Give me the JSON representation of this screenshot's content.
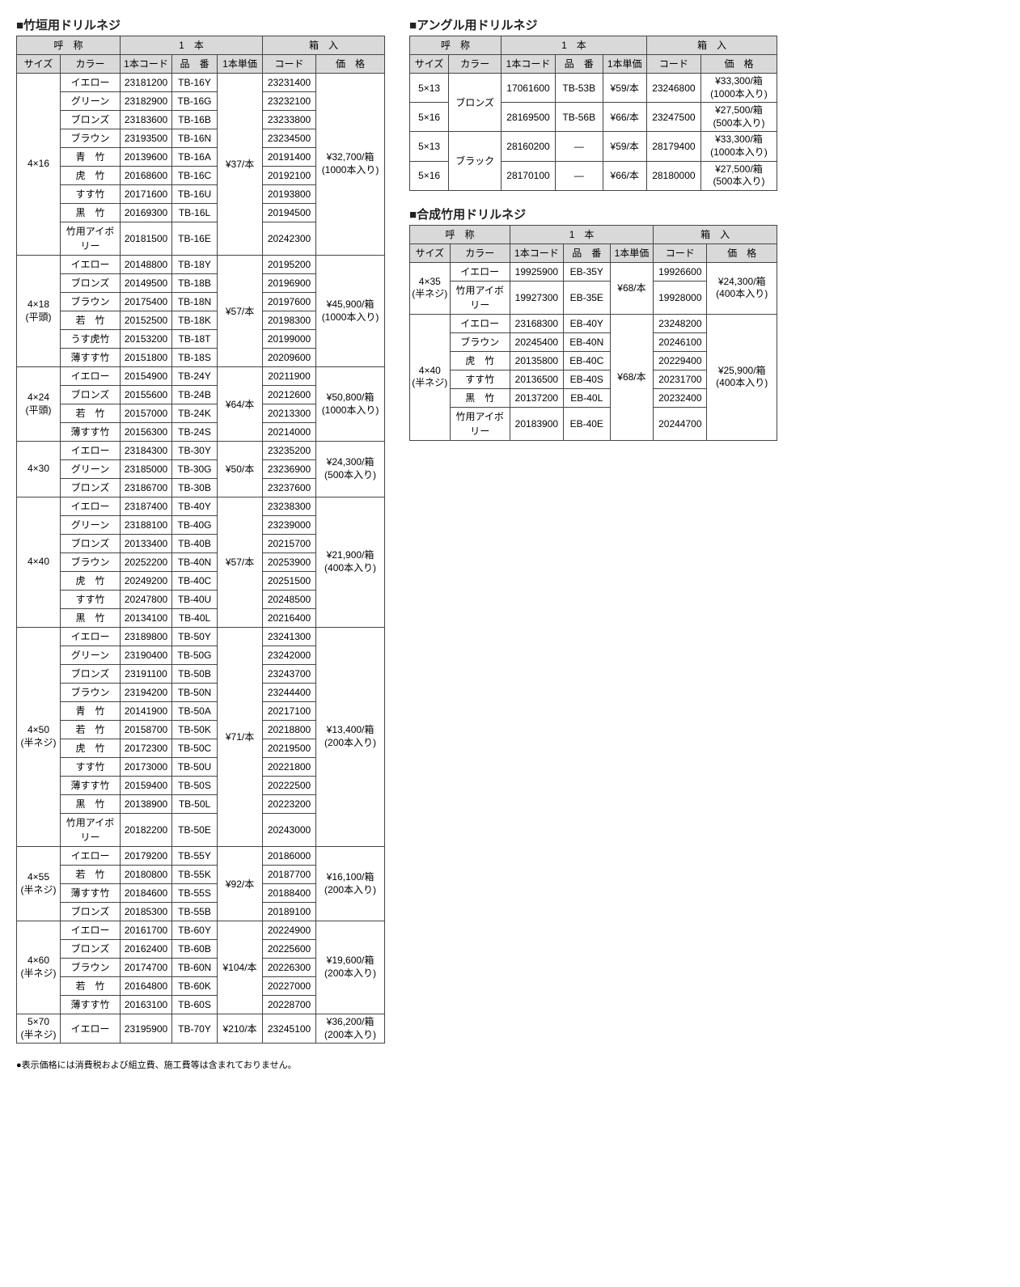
{
  "headers": {
    "name": "呼　称",
    "size": "サイズ",
    "color": "カラー",
    "single": "1　本",
    "code1": "1本コード",
    "part": "品　番",
    "unitPrice": "1本単価",
    "box": "箱　入",
    "boxCode": "コード",
    "boxPrice": "価　格"
  },
  "titles": {
    "t1": "■竹垣用ドリルネジ",
    "t2": "■アングル用ドリルネジ",
    "t3": "■合成竹用ドリルネジ"
  },
  "table1": {
    "groups": [
      {
        "size": "4×16",
        "sizeNote": "",
        "unitPrice": "¥37/本",
        "boxPrice": "¥32,700/箱",
        "boxPack": "(1000本入り)",
        "rows": [
          {
            "color": "イエロー",
            "code": "23181200",
            "part": "TB-16Y",
            "boxCode": "23231400"
          },
          {
            "color": "グリーン",
            "code": "23182900",
            "part": "TB-16G",
            "boxCode": "23232100"
          },
          {
            "color": "ブロンズ",
            "code": "23183600",
            "part": "TB-16B",
            "boxCode": "23233800"
          },
          {
            "color": "ブラウン",
            "code": "23193500",
            "part": "TB-16N",
            "boxCode": "23234500"
          },
          {
            "color": "青　竹",
            "code": "20139600",
            "part": "TB-16A",
            "boxCode": "20191400"
          },
          {
            "color": "虎　竹",
            "code": "20168600",
            "part": "TB-16C",
            "boxCode": "20192100"
          },
          {
            "color": "すす竹",
            "code": "20171600",
            "part": "TB-16U",
            "boxCode": "20193800"
          },
          {
            "color": "黒　竹",
            "code": "20169300",
            "part": "TB-16L",
            "boxCode": "20194500"
          },
          {
            "color": "竹用アイボリー",
            "code": "20181500",
            "part": "TB-16E",
            "boxCode": "20242300"
          }
        ]
      },
      {
        "size": "4×18",
        "sizeNote": "(平頭)",
        "unitPrice": "¥57/本",
        "boxPrice": "¥45,900/箱",
        "boxPack": "(1000本入り)",
        "rows": [
          {
            "color": "イエロー",
            "code": "20148800",
            "part": "TB-18Y",
            "boxCode": "20195200"
          },
          {
            "color": "ブロンズ",
            "code": "20149500",
            "part": "TB-18B",
            "boxCode": "20196900"
          },
          {
            "color": "ブラウン",
            "code": "20175400",
            "part": "TB-18N",
            "boxCode": "20197600"
          },
          {
            "color": "若　竹",
            "code": "20152500",
            "part": "TB-18K",
            "boxCode": "20198300"
          },
          {
            "color": "うす虎竹",
            "code": "20153200",
            "part": "TB-18T",
            "boxCode": "20199000"
          },
          {
            "color": "薄すす竹",
            "code": "20151800",
            "part": "TB-18S",
            "boxCode": "20209600"
          }
        ]
      },
      {
        "size": "4×24",
        "sizeNote": "(平頭)",
        "unitPrice": "¥64/本",
        "boxPrice": "¥50,800/箱",
        "boxPack": "(1000本入り)",
        "rows": [
          {
            "color": "イエロー",
            "code": "20154900",
            "part": "TB-24Y",
            "boxCode": "20211900"
          },
          {
            "color": "ブロンズ",
            "code": "20155600",
            "part": "TB-24B",
            "boxCode": "20212600"
          },
          {
            "color": "若　竹",
            "code": "20157000",
            "part": "TB-24K",
            "boxCode": "20213300"
          },
          {
            "color": "薄すす竹",
            "code": "20156300",
            "part": "TB-24S",
            "boxCode": "20214000"
          }
        ]
      },
      {
        "size": "4×30",
        "sizeNote": "",
        "unitPrice": "¥50/本",
        "boxPrice": "¥24,300/箱",
        "boxPack": "(500本入り)",
        "rows": [
          {
            "color": "イエロー",
            "code": "23184300",
            "part": "TB-30Y",
            "boxCode": "23235200"
          },
          {
            "color": "グリーン",
            "code": "23185000",
            "part": "TB-30G",
            "boxCode": "23236900"
          },
          {
            "color": "ブロンズ",
            "code": "23186700",
            "part": "TB-30B",
            "boxCode": "23237600"
          }
        ]
      },
      {
        "size": "4×40",
        "sizeNote": "",
        "unitPrice": "¥57/本",
        "boxPrice": "¥21,900/箱",
        "boxPack": "(400本入り)",
        "rows": [
          {
            "color": "イエロー",
            "code": "23187400",
            "part": "TB-40Y",
            "boxCode": "23238300"
          },
          {
            "color": "グリーン",
            "code": "23188100",
            "part": "TB-40G",
            "boxCode": "23239000"
          },
          {
            "color": "ブロンズ",
            "code": "20133400",
            "part": "TB-40B",
            "boxCode": "20215700"
          },
          {
            "color": "ブラウン",
            "code": "20252200",
            "part": "TB-40N",
            "boxCode": "20253900"
          },
          {
            "color": "虎　竹",
            "code": "20249200",
            "part": "TB-40C",
            "boxCode": "20251500"
          },
          {
            "color": "すす竹",
            "code": "20247800",
            "part": "TB-40U",
            "boxCode": "20248500"
          },
          {
            "color": "黒　竹",
            "code": "20134100",
            "part": "TB-40L",
            "boxCode": "20216400"
          }
        ]
      },
      {
        "size": "4×50",
        "sizeNote": "(半ネジ)",
        "unitPrice": "¥71/本",
        "boxPrice": "¥13,400/箱",
        "boxPack": "(200本入り)",
        "rows": [
          {
            "color": "イエロー",
            "code": "23189800",
            "part": "TB-50Y",
            "boxCode": "23241300"
          },
          {
            "color": "グリーン",
            "code": "23190400",
            "part": "TB-50G",
            "boxCode": "23242000"
          },
          {
            "color": "ブロンズ",
            "code": "23191100",
            "part": "TB-50B",
            "boxCode": "23243700"
          },
          {
            "color": "ブラウン",
            "code": "23194200",
            "part": "TB-50N",
            "boxCode": "23244400"
          },
          {
            "color": "青　竹",
            "code": "20141900",
            "part": "TB-50A",
            "boxCode": "20217100"
          },
          {
            "color": "若　竹",
            "code": "20158700",
            "part": "TB-50K",
            "boxCode": "20218800"
          },
          {
            "color": "虎　竹",
            "code": "20172300",
            "part": "TB-50C",
            "boxCode": "20219500"
          },
          {
            "color": "すす竹",
            "code": "20173000",
            "part": "TB-50U",
            "boxCode": "20221800"
          },
          {
            "color": "薄すす竹",
            "code": "20159400",
            "part": "TB-50S",
            "boxCode": "20222500"
          },
          {
            "color": "黒　竹",
            "code": "20138900",
            "part": "TB-50L",
            "boxCode": "20223200"
          },
          {
            "color": "竹用アイボリー",
            "code": "20182200",
            "part": "TB-50E",
            "boxCode": "20243000"
          }
        ]
      },
      {
        "size": "4×55",
        "sizeNote": "(半ネジ)",
        "unitPrice": "¥92/本",
        "boxPrice": "¥16,100/箱",
        "boxPack": "(200本入り)",
        "rows": [
          {
            "color": "イエロー",
            "code": "20179200",
            "part": "TB-55Y",
            "boxCode": "20186000"
          },
          {
            "color": "若　竹",
            "code": "20180800",
            "part": "TB-55K",
            "boxCode": "20187700"
          },
          {
            "color": "薄すす竹",
            "code": "20184600",
            "part": "TB-55S",
            "boxCode": "20188400"
          },
          {
            "color": "ブロンズ",
            "code": "20185300",
            "part": "TB-55B",
            "boxCode": "20189100"
          }
        ]
      },
      {
        "size": "4×60",
        "sizeNote": "(半ネジ)",
        "unitPrice": "¥104/本",
        "boxPrice": "¥19,600/箱",
        "boxPack": "(200本入り)",
        "rows": [
          {
            "color": "イエロー",
            "code": "20161700",
            "part": "TB-60Y",
            "boxCode": "20224900"
          },
          {
            "color": "ブロンズ",
            "code": "20162400",
            "part": "TB-60B",
            "boxCode": "20225600"
          },
          {
            "color": "ブラウン",
            "code": "20174700",
            "part": "TB-60N",
            "boxCode": "20226300"
          },
          {
            "color": "若　竹",
            "code": "20164800",
            "part": "TB-60K",
            "boxCode": "20227000"
          },
          {
            "color": "薄すす竹",
            "code": "20163100",
            "part": "TB-60S",
            "boxCode": "20228700"
          }
        ]
      },
      {
        "size": "5×70",
        "sizeNote": "(半ネジ)",
        "unitPrice": "¥210/本",
        "boxPrice": "¥36,200/箱",
        "boxPack": "(200本入り)",
        "rows": [
          {
            "color": "イエロー",
            "code": "23195900",
            "part": "TB-70Y",
            "boxCode": "23245100"
          }
        ]
      }
    ]
  },
  "table2": {
    "colorGroups": [
      {
        "color": "ブロンズ",
        "rows": [
          {
            "size": "5×13",
            "code": "17061600",
            "part": "TB-53B",
            "unitPrice": "¥59/本",
            "boxCode": "23246800",
            "boxPrice": "¥33,300/箱",
            "boxPack": "(1000本入り)"
          },
          {
            "size": "5×16",
            "code": "28169500",
            "part": "TB-56B",
            "unitPrice": "¥66/本",
            "boxCode": "23247500",
            "boxPrice": "¥27,500/箱",
            "boxPack": "(500本入り)"
          }
        ]
      },
      {
        "color": "ブラック",
        "rows": [
          {
            "size": "5×13",
            "code": "28160200",
            "part": "—",
            "unitPrice": "¥59/本",
            "boxCode": "28179400",
            "boxPrice": "¥33,300/箱",
            "boxPack": "(1000本入り)"
          },
          {
            "size": "5×16",
            "code": "28170100",
            "part": "—",
            "unitPrice": "¥66/本",
            "boxCode": "28180000",
            "boxPrice": "¥27,500/箱",
            "boxPack": "(500本入り)"
          }
        ]
      }
    ]
  },
  "table3": {
    "groups": [
      {
        "size": "4×35",
        "sizeNote": "(半ネジ)",
        "unitPrice": "¥68/本",
        "boxPrice": "¥24,300/箱",
        "boxPack": "(400本入り)",
        "rows": [
          {
            "color": "イエロー",
            "code": "19925900",
            "part": "EB-35Y",
            "boxCode": "19926600"
          },
          {
            "color": "竹用アイボリー",
            "code": "19927300",
            "part": "EB-35E",
            "boxCode": "19928000"
          }
        ]
      },
      {
        "size": "4×40",
        "sizeNote": "(半ネジ)",
        "unitPrice": "¥68/本",
        "boxPrice": "¥25,900/箱",
        "boxPack": "(400本入り)",
        "rows": [
          {
            "color": "イエロー",
            "code": "23168300",
            "part": "EB-40Y",
            "boxCode": "23248200"
          },
          {
            "color": "ブラウン",
            "code": "20245400",
            "part": "EB-40N",
            "boxCode": "20246100"
          },
          {
            "color": "虎　竹",
            "code": "20135800",
            "part": "EB-40C",
            "boxCode": "20229400"
          },
          {
            "color": "すす竹",
            "code": "20136500",
            "part": "EB-40S",
            "boxCode": "20231700"
          },
          {
            "color": "黒　竹",
            "code": "20137200",
            "part": "EB-40L",
            "boxCode": "20232400"
          },
          {
            "color": "竹用アイボリー",
            "code": "20183900",
            "part": "EB-40E",
            "boxCode": "20244700"
          }
        ]
      }
    ]
  },
  "footnote": "●表示価格には消費税および組立費、施工費等は含まれておりません。"
}
